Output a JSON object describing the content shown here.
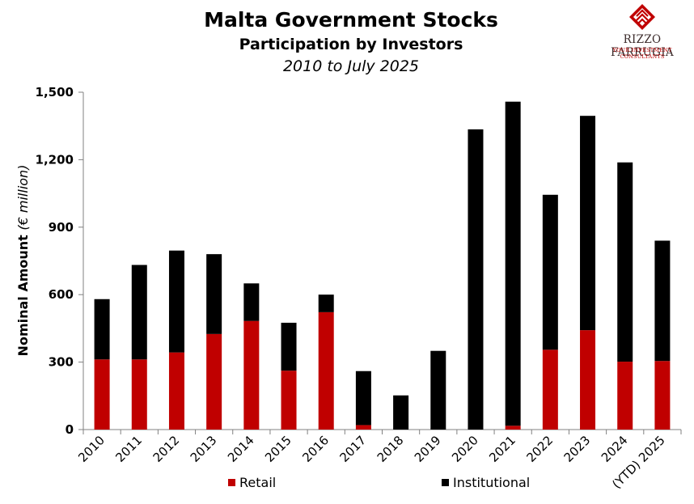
{
  "brand": {
    "name": "RIZZO FARRUGIA",
    "tagline": "YOUR INVESTMENT CONSULTANTS",
    "colors": {
      "primary": "#c00000",
      "secondary": "#3a2a2a"
    }
  },
  "chart_data": {
    "type": "bar",
    "stacked": true,
    "title": "Malta Government Stocks",
    "subtitle": "Participation by Investors",
    "period": "2010 to July 2025",
    "ylabel_main": "Nominal Amount",
    "ylabel_unit": "(€ million)",
    "xlabel": "",
    "ylim": [
      0,
      1500
    ],
    "yticks": [
      0,
      300,
      600,
      900,
      1200,
      1500
    ],
    "ytick_labels": [
      "0",
      "300",
      "600",
      "900",
      "1,200",
      "1,500"
    ],
    "categories": [
      "2010",
      "2011",
      "2012",
      "2013",
      "2014",
      "2015",
      "2016",
      "2017",
      "2018",
      "2019",
      "2020",
      "2021",
      "2022",
      "2023",
      "2024",
      "(YTD) 2025"
    ],
    "series": [
      {
        "name": "Retail",
        "color": "#c00000",
        "values": [
          312,
          312,
          343,
          425,
          483,
          262,
          522,
          20,
          0,
          0,
          0,
          17,
          355,
          442,
          302,
          305
        ]
      },
      {
        "name": "Institutional",
        "color": "#000000",
        "values": [
          268,
          420,
          453,
          355,
          167,
          213,
          78,
          240,
          152,
          350,
          1335,
          1441,
          689,
          953,
          886,
          535
        ]
      }
    ],
    "grid": false,
    "legend_position": "bottom"
  }
}
